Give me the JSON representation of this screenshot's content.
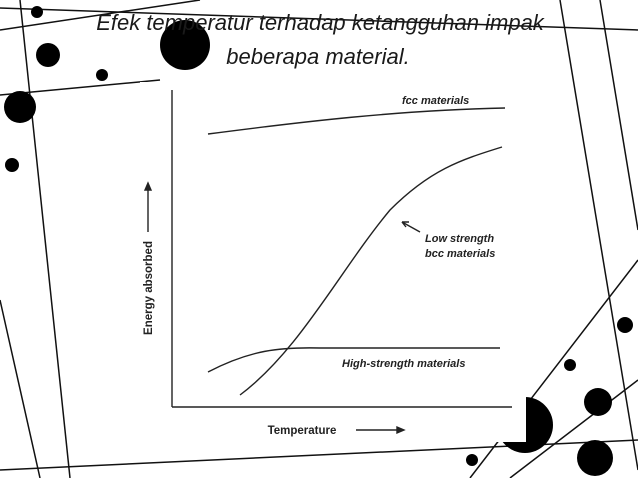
{
  "title": {
    "lines": [
      "Efek temperatur terhadap ketangguhan impak",
      "beberapa material."
    ]
  },
  "figure": {
    "y_label": "Energy absorbed",
    "x_label": "Temperature",
    "curves": [
      {
        "label_lines": [
          "fcc materials"
        ]
      },
      {
        "label_lines": [
          "Low strength",
          "bcc materials"
        ]
      },
      {
        "label_lines": [
          "High-strength materials"
        ]
      }
    ]
  }
}
